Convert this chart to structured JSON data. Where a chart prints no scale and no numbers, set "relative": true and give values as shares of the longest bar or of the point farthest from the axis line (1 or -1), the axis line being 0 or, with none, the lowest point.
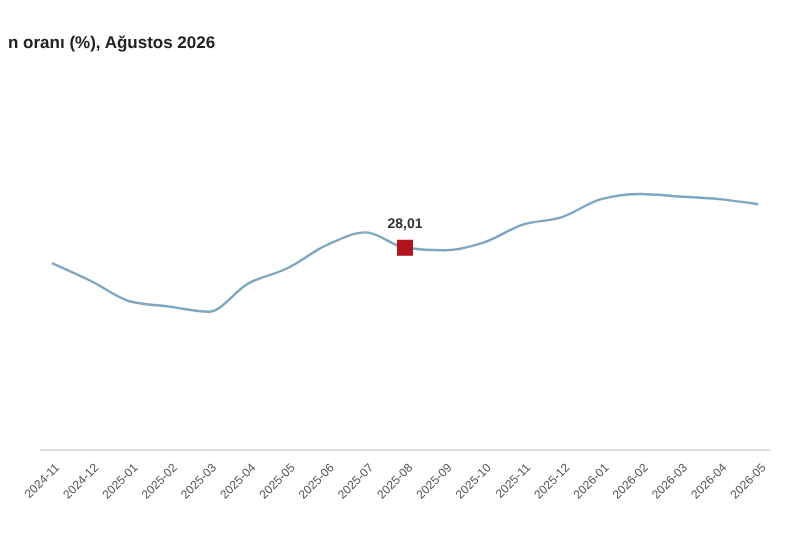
{
  "chart_data": {
    "type": "line",
    "title": "n oranı (%), Ağustos 2026",
    "relative": true,
    "tick_labels": "x",
    "categories": [
      "2024-11",
      "2024-12",
      "2025-01",
      "2025-02",
      "2025-03",
      "2025-04",
      "2025-05",
      "2025-06",
      "2025-07",
      "2025-08",
      "2025-09",
      "2025-10",
      "2025-11",
      "2025-12",
      "2026-01",
      "2026-02",
      "2026-03",
      "2026-04",
      "2026-05"
    ],
    "series": [
      {
        "color": "#7fa6c0",
        "values": [
          0.73,
          0.66,
          0.58,
          0.56,
          0.54,
          0.65,
          0.71,
          0.8,
          0.85,
          0.79,
          0.78,
          0.81,
          0.88,
          0.91,
          0.98,
          1,
          0.99,
          0.98,
          0.96
        ]
      },
      {
        "type": "scatter",
        "color": "#b0141c",
        "marker": "square",
        "values": [
          null,
          null,
          null,
          null,
          null,
          null,
          null,
          null,
          null,
          0.79,
          null,
          null,
          null,
          null,
          null,
          null,
          null,
          null,
          null
        ]
      }
    ],
    "annotations": [
      {
        "text": "28,01",
        "x": "2025-08",
        "y": 0.79
      }
    ]
  }
}
